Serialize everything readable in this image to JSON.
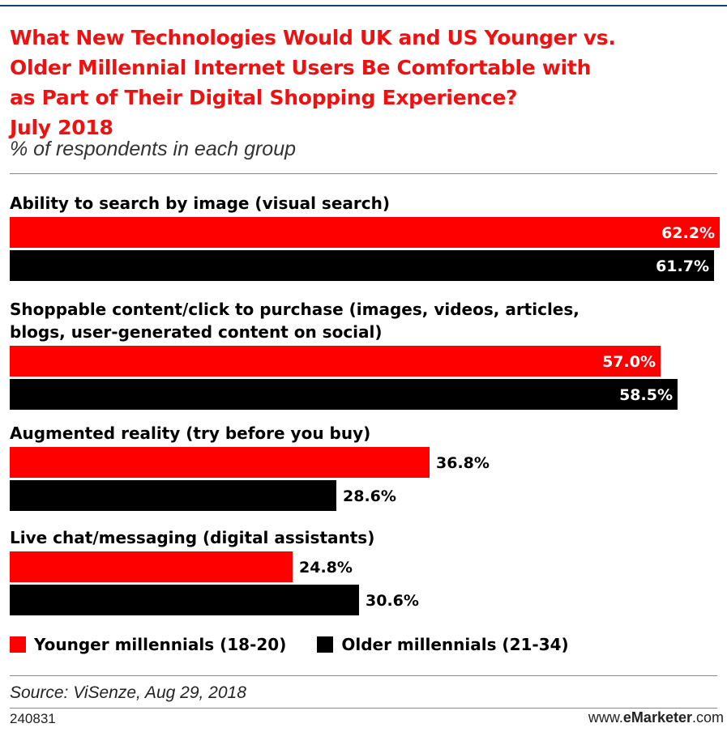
{
  "title_lines": [
    "What New Technologies Would UK and US Younger vs.",
    "Older Millennial Internet Users Be Comfortable with",
    "as Part of Their Digital Shopping Experience?",
    "July 2018"
  ],
  "subtitle": "% of respondents in each group",
  "colors": {
    "younger": "#ff0000",
    "older": "#000000",
    "title": "#ee1111"
  },
  "chart_data": {
    "type": "bar",
    "orientation": "horizontal",
    "categories": [
      [
        "Ability to search by image (visual search)"
      ],
      [
        "Shoppable content/click to purchase (images, videos, articles,",
        "blogs, user-generated content on social)"
      ],
      [
        "Augmented reality (try before you buy)"
      ],
      [
        "Live chat/messaging (digital assistants)"
      ]
    ],
    "series": [
      {
        "name": "Younger millennials (18-20)",
        "values": [
          62.2,
          57.0,
          36.8,
          24.8
        ],
        "labels": [
          "62.2%",
          "57.0%",
          "36.8%",
          "24.8%"
        ]
      },
      {
        "name": "Older millennials (21-34)",
        "values": [
          61.7,
          58.5,
          28.6,
          30.6
        ],
        "labels": [
          "61.7%",
          "58.5%",
          "28.6%",
          "30.6%"
        ]
      }
    ],
    "xlim": [
      0,
      62.2
    ],
    "legend": "bottom"
  },
  "source": "Source: ViSenze, Aug 29, 2018",
  "footer": {
    "id": "240831",
    "brand_prefix": "www.",
    "brand_bold": "eMarketer",
    "brand_suffix": ".com"
  }
}
